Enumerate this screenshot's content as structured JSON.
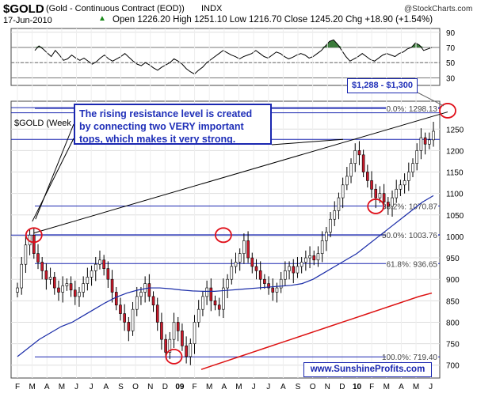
{
  "header": {
    "symbol": "$GOLD",
    "subtitle": "(Gold - Continuous Contract (EOD))",
    "exchange": "INDX",
    "watermark": "@StockCharts.com",
    "date": "17-Jun-2010",
    "quote": "Open 1226.20   High 1251.10   Low 1216.70   Close 1245.20   Chg +18.90 (+1.54%)",
    "quote_arrow": "▲",
    "price_label": "$GOLD (Week"
  },
  "annotations": {
    "note": "The rising resistance level is created by connecting two VERY important tops, which makes it very strong.",
    "range": "$1,288 - $1,300",
    "url": "www.SunshineProfits.com"
  },
  "colors": {
    "up": "#ffffff",
    "down": "#cc1a2b",
    "ma_short": "#1a2ca8",
    "ma_long": "#dd1111",
    "hline": "#1a27b0",
    "circle": "#e0101a",
    "rsi_fill": "#3a7a3a"
  },
  "chart_data": [
    {
      "type": "line",
      "name": "RSI",
      "y_ticks": [
        30,
        50,
        70,
        90
      ],
      "ylim": [
        20,
        95
      ],
      "ref_lines": [
        30,
        50,
        70
      ],
      "values": [
        66,
        72,
        68,
        63,
        58,
        66,
        60,
        53,
        55,
        60,
        56,
        53,
        56,
        52,
        48,
        51,
        56,
        60,
        55,
        52,
        55,
        58,
        62,
        57,
        52,
        48,
        46,
        50,
        47,
        43,
        40,
        44,
        47,
        50,
        55,
        52,
        48,
        42,
        38,
        35,
        40,
        44,
        50,
        54,
        58,
        62,
        66,
        63,
        60,
        58,
        55,
        58,
        60,
        62,
        66,
        62,
        58,
        56,
        60,
        64,
        62,
        58,
        55,
        57,
        60,
        62,
        60,
        56,
        58,
        62,
        66,
        72,
        78,
        80,
        74,
        66,
        58,
        52,
        55,
        58,
        62,
        58,
        54,
        52,
        56,
        60,
        62,
        60,
        58,
        62,
        64,
        68,
        70,
        76,
        73,
        66,
        68,
        70
      ]
    },
    {
      "type": "bar",
      "name": "$GOLD weekly price",
      "ylim": [
        670,
        1315
      ],
      "y_ticks": [
        700,
        750,
        800,
        850,
        900,
        950,
        1000,
        1050,
        1100,
        1150,
        1200,
        1250
      ],
      "x_labels": [
        "F",
        "M",
        "A",
        "M",
        "J",
        "J",
        "A",
        "S",
        "O",
        "N",
        "D",
        "09",
        "F",
        "M",
        "A",
        "M",
        "J",
        "J",
        "A",
        "S",
        "O",
        "N",
        "D",
        "10",
        "F",
        "M",
        "A",
        "M",
        "J"
      ],
      "bold_x_labels": [
        "09",
        "10"
      ],
      "close": [
        880,
        935,
        980,
        1003,
        960,
        940,
        920,
        900,
        905,
        880,
        870,
        885,
        890,
        875,
        860,
        870,
        890,
        905,
        920,
        935,
        945,
        925,
        900,
        870,
        840,
        820,
        800,
        780,
        830,
        860,
        870,
        890,
        860,
        840,
        800,
        760,
        730,
        760,
        800,
        780,
        745,
        720,
        750,
        800,
        830,
        860,
        880,
        850,
        840,
        830,
        880,
        900,
        930,
        940,
        960,
        990,
        950,
        930,
        920,
        900,
        890,
        880,
        870,
        880,
        900,
        920,
        930,
        915,
        930,
        940,
        950,
        955,
        945,
        960,
        990,
        1010,
        1040,
        1060,
        1090,
        1120,
        1140,
        1170,
        1200,
        1190,
        1150,
        1130,
        1110,
        1090,
        1100,
        1080,
        1070,
        1090,
        1110,
        1120,
        1130,
        1150,
        1170,
        1200,
        1230,
        1215,
        1225,
        1245
      ],
      "ma_short": [
        720,
        740,
        760,
        775,
        790,
        800,
        815,
        830,
        845,
        858,
        868,
        875,
        880,
        880,
        878,
        875,
        873,
        872,
        872,
        874,
        876,
        878,
        880,
        882,
        884,
        886,
        890,
        900,
        915,
        930,
        945,
        960,
        980,
        1000,
        1020,
        1040,
        1060,
        1080,
        1095
      ],
      "ma_long": [
        690,
        700,
        710,
        720,
        730,
        740,
        750,
        760,
        770,
        780,
        790,
        800,
        810,
        820,
        830,
        840,
        850,
        860,
        868
      ],
      "circles": [
        1003,
        1003,
        720,
        1070,
        1293
      ],
      "hlines": [
        {
          "value": 1300,
          "label": ""
        },
        {
          "value": 1288,
          "label": ""
        },
        {
          "value": 1226,
          "label": ""
        },
        {
          "value": 1003,
          "label": ""
        }
      ],
      "fib_levels": [
        {
          "value": 1298.13,
          "label": "0.0%: 1298.13"
        },
        {
          "value": 1070.87,
          "label": "38.2%: 1070.87"
        },
        {
          "value": 1003.76,
          "label": "50.0%: 1003.76"
        },
        {
          "value": 936.65,
          "label": "61.8%: 936.65"
        },
        {
          "value": 719.4,
          "label": "100.0%: 719.40"
        }
      ],
      "resistance_line": {
        "from": [
          4,
          1008
        ],
        "to": [
          100,
          1290
        ]
      }
    }
  ]
}
